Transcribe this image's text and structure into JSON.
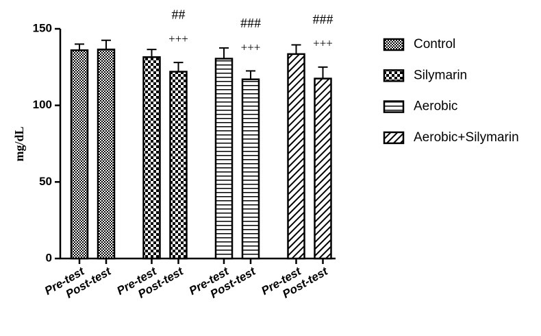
{
  "chart_data": {
    "type": "bar",
    "ylabel": "mg/dL",
    "categories": [
      "Pre-test",
      "Post-test"
    ],
    "ylim": [
      0,
      150
    ],
    "yticks": [
      0,
      50,
      100,
      150
    ],
    "series": [
      {
        "name": "Control",
        "color": "#000000",
        "pattern": "crosshatch",
        "values": [
          136,
          136.5
        ],
        "errors": [
          4,
          6
        ]
      },
      {
        "name": "Silymarin",
        "color": "#000000",
        "pattern": "checker",
        "values": [
          131.5,
          122
        ],
        "errors": [
          5,
          6
        ],
        "annotations": [
          null,
          [
            "+++",
            "##"
          ]
        ]
      },
      {
        "name": "Aerobic",
        "color": "#000000",
        "pattern": "hlines",
        "values": [
          130.5,
          117
        ],
        "errors": [
          7,
          5.5
        ],
        "annotations": [
          null,
          [
            "+++",
            "###"
          ]
        ]
      },
      {
        "name": "Aerobic+Silymarin",
        "color": "#000000",
        "pattern": "diagonal",
        "values": [
          133.5,
          117.5
        ],
        "errors": [
          6,
          7.5
        ],
        "annotations": [
          null,
          [
            "+++",
            "###"
          ]
        ]
      }
    ]
  }
}
